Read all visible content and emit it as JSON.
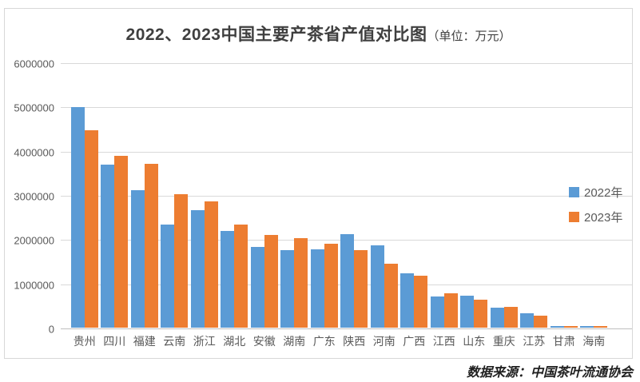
{
  "title": {
    "main": "2022、2023中国主要产茶省产值对比图",
    "unit": "（单位：万元）"
  },
  "legend": [
    {
      "label": "2022年",
      "color": "#5B9BD5"
    },
    {
      "label": "2023年",
      "color": "#ED7D31"
    }
  ],
  "source": "数据来源：中国茶叶流通协会",
  "colors": {
    "series_2022": "#5B9BD5",
    "series_2023": "#ED7D31",
    "gridline": "#D9D9D9",
    "axis_line": "#BFBFBF",
    "text": "#595959"
  },
  "chart_data": {
    "type": "bar",
    "title": "2022、2023中国主要产茶省产值对比图（单位：万元）",
    "categories": [
      "贵州",
      "四川",
      "福建",
      "云南",
      "浙江",
      "湖北",
      "安徽",
      "湖南",
      "广东",
      "陕西",
      "河南",
      "广西",
      "江西",
      "山东",
      "重庆",
      "江苏",
      "甘肃",
      "海南"
    ],
    "series": [
      {
        "name": "2022年",
        "color": "#5B9BD5",
        "values": [
          4980000,
          3680000,
          3100000,
          2330000,
          2650000,
          2180000,
          1820000,
          1760000,
          1780000,
          2110000,
          1870000,
          1230000,
          700000,
          730000,
          450000,
          320000,
          40000,
          42000
        ]
      },
      {
        "name": "2023年",
        "color": "#ED7D31",
        "values": [
          4470000,
          3880000,
          3700000,
          3020000,
          2860000,
          2340000,
          2100000,
          2020000,
          1900000,
          1750000,
          1450000,
          1180000,
          770000,
          630000,
          470000,
          280000,
          35000,
          38000
        ]
      }
    ],
    "xlabel": "",
    "ylabel": "",
    "ylim": [
      0,
      6000000
    ],
    "yticks": [
      0,
      1000000,
      2000000,
      3000000,
      4000000,
      5000000,
      6000000
    ],
    "grid": true,
    "legend_position": "right"
  }
}
